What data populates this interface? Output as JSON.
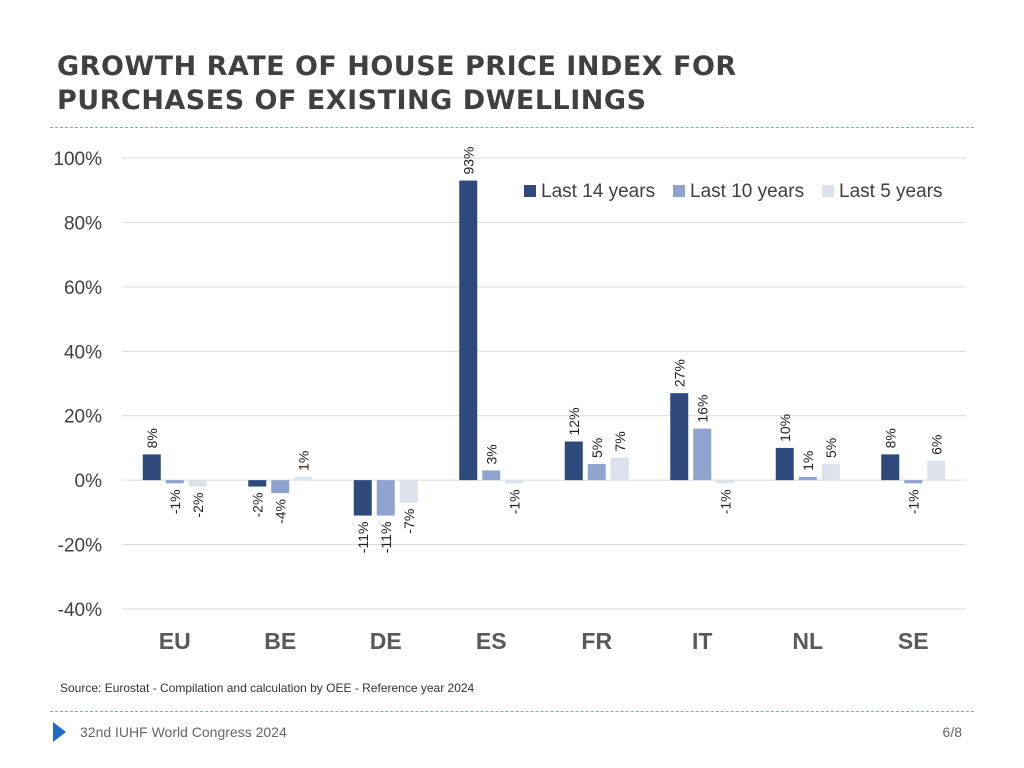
{
  "slide": {
    "title_line1": "GROWTH RATE OF HOUSE PRICE INDEX FOR",
    "title_line2": "PURCHASES OF EXISTING DWELLINGS",
    "source": "Source: Eurostat - Compilation and calculation by OEE - Reference year 2024",
    "footer": "32nd IUHF World Congress 2024",
    "page": "6/8"
  },
  "colors": {
    "series": [
      "#2e4a7d",
      "#8fa3cf",
      "#dde1ec"
    ],
    "grid": "#d9d9d9",
    "axis_text": "#404040",
    "category_text": "#595959",
    "accent": "#1f6cc4"
  },
  "chart_data": {
    "type": "bar",
    "title": "GROWTH RATE OF HOUSE PRICE INDEX FOR PURCHASES OF EXISTING DWELLINGS",
    "xlabel": "",
    "ylabel": "",
    "ylim": [
      -40,
      100
    ],
    "yticks": [
      -40,
      -20,
      0,
      20,
      40,
      60,
      80,
      100
    ],
    "ytick_labels": [
      "-40%",
      "-20%",
      "0%",
      "20%",
      "40%",
      "60%",
      "80%",
      "100%"
    ],
    "grid": true,
    "legend_position": "top-right",
    "categories": [
      "EU",
      "BE",
      "DE",
      "ES",
      "FR",
      "IT",
      "NL",
      "SE"
    ],
    "series": [
      {
        "name": "Last 14 years",
        "values": [
          8,
          -2,
          -11,
          93,
          12,
          27,
          10,
          8
        ],
        "labels": [
          "8%",
          "-2%",
          "-11%",
          "93%",
          "12%",
          "27%",
          "10%",
          "8%"
        ]
      },
      {
        "name": "Last 10 years",
        "values": [
          -1,
          -4,
          -11,
          3,
          5,
          16,
          1,
          -1
        ],
        "labels": [
          "-1%",
          "-4%",
          "-11%",
          "3%",
          "5%",
          "16%",
          "1%",
          "-1%"
        ]
      },
      {
        "name": "Last 5 years",
        "values": [
          -2,
          1,
          -7,
          -1,
          7,
          -1,
          5,
          6
        ],
        "labels": [
          "-2%",
          "1%",
          "-7%",
          "-1%",
          "7%",
          "-1%",
          "5%",
          "6%"
        ]
      }
    ]
  }
}
